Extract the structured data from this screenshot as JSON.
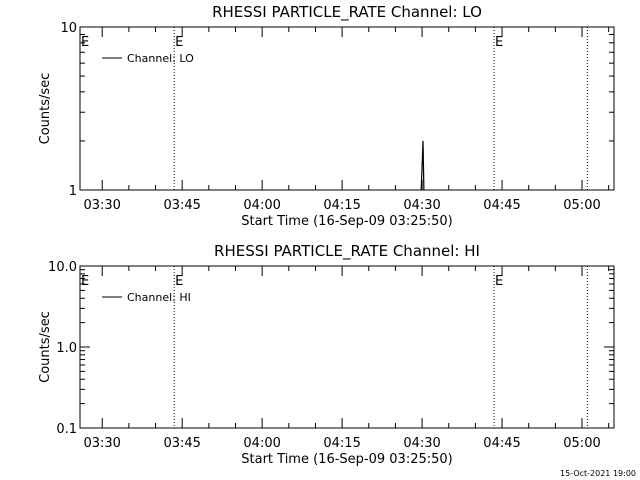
{
  "chart_data": [
    {
      "type": "line",
      "title": "RHESSI PARTICLE_RATE Channel: LO",
      "xlabel": "Start Time (16-Sep-09 03:25:50)",
      "ylabel": "Counts/sec",
      "y_scale": "log",
      "ylim": [
        1,
        10
      ],
      "y_ticks": [
        "1",
        "10"
      ],
      "xlim": [
        "03:25:50",
        "05:06:00"
      ],
      "x_ticks": [
        "03:30",
        "03:45",
        "04:00",
        "04:15",
        "04:30",
        "04:45",
        "05:00"
      ],
      "legend": {
        "label": "Channel: LO",
        "placement": "top-left"
      },
      "markers": [
        {
          "time": "03:43:30",
          "label": "E"
        },
        {
          "time": "04:43:30",
          "label": "E"
        },
        {
          "time": "05:01:00",
          "label": ""
        }
      ],
      "edge_markers": [
        "E"
      ],
      "series": [
        {
          "name": "Channel: LO",
          "x": [
            "04:29:50",
            "04:30:00",
            "04:30:10",
            "04:30:20"
          ],
          "y": [
            1,
            1.4,
            2.0,
            1
          ]
        }
      ]
    },
    {
      "type": "line",
      "title": "RHESSI PARTICLE_RATE Channel: HI",
      "xlabel": "Start Time (16-Sep-09 03:25:50)",
      "ylabel": "Counts/sec",
      "y_scale": "log",
      "ylim": [
        0.1,
        10
      ],
      "y_ticks": [
        "0.1",
        "1.0",
        "10.0"
      ],
      "xlim": [
        "03:25:50",
        "05:06:00"
      ],
      "x_ticks": [
        "03:30",
        "03:45",
        "04:00",
        "04:15",
        "04:30",
        "04:45",
        "05:00"
      ],
      "legend": {
        "label": "Channel: HI",
        "placement": "top-left"
      },
      "markers": [
        {
          "time": "03:43:30",
          "label": "E"
        },
        {
          "time": "04:43:30",
          "label": "E"
        },
        {
          "time": "05:01:00",
          "label": ""
        }
      ],
      "edge_markers": [
        "E"
      ],
      "series": [
        {
          "name": "Channel: HI",
          "x": [],
          "y": []
        }
      ]
    }
  ],
  "timestamp": "15-Oct-2021 19:00"
}
